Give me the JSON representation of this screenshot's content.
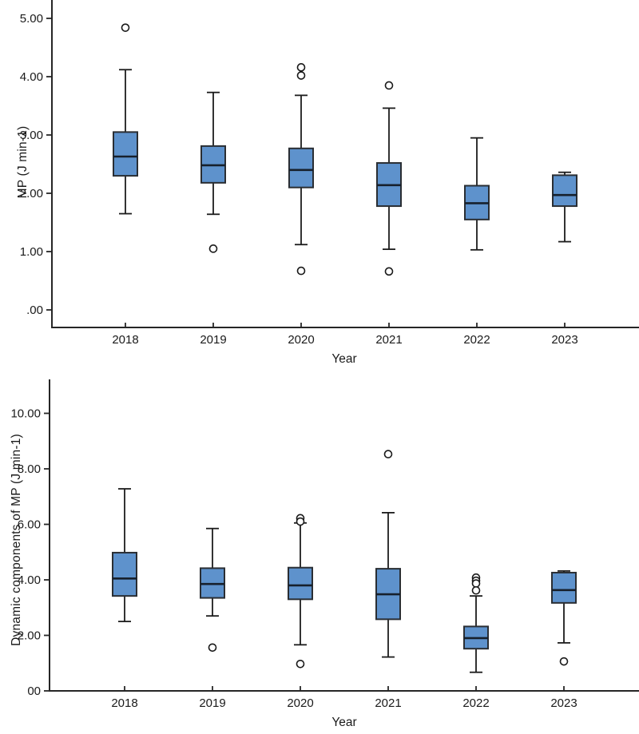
{
  "colors": {
    "background": "#FFFFFF",
    "box_fill": "#5E92CC",
    "box_stroke": "#2A2E33",
    "median_stroke": "#17202C",
    "whisker_stroke": "#1C1C1C",
    "axis_stroke": "#262626",
    "text": "#1A1A1A",
    "outlier_stroke": "#1A1A1A"
  },
  "chart_data": [
    {
      "type": "box",
      "title": "",
      "ylabel": "MP (J min-1)",
      "xlabel": "Year",
      "grid": false,
      "legend": "none",
      "categories": [
        "2018",
        "2019",
        "2020",
        "2021",
        "2022",
        "2023"
      ],
      "ylim": [
        -0.3,
        5.3
      ],
      "y_ticks": [
        {
          "value": 5,
          "label": "5.00"
        },
        {
          "value": 4,
          "label": "4.00"
        },
        {
          "value": 3,
          "label": "3.00"
        },
        {
          "value": 2,
          "label": "2.00"
        },
        {
          "value": 1,
          "label": "1.00"
        },
        {
          "value": 0,
          "label": ".00"
        }
      ],
      "boxes": [
        {
          "category": "2018",
          "whisker_low": 1.65,
          "q1": 2.3,
          "median": 2.63,
          "q3": 3.05,
          "whisker_high": 4.12,
          "outliers": [
            4.84
          ]
        },
        {
          "category": "2019",
          "whisker_low": 1.64,
          "q1": 2.18,
          "median": 2.48,
          "q3": 2.81,
          "whisker_high": 3.73,
          "outliers": [
            1.05
          ]
        },
        {
          "category": "2020",
          "whisker_low": 1.12,
          "q1": 2.1,
          "median": 2.4,
          "q3": 2.77,
          "whisker_high": 3.68,
          "outliers": [
            4.16,
            4.02,
            0.67
          ]
        },
        {
          "category": "2021",
          "whisker_low": 1.04,
          "q1": 1.78,
          "median": 2.14,
          "q3": 2.52,
          "whisker_high": 3.46,
          "outliers": [
            3.85,
            0.66
          ]
        },
        {
          "category": "2022",
          "whisker_low": 1.03,
          "q1": 1.55,
          "median": 1.83,
          "q3": 2.13,
          "whisker_high": 2.95,
          "outliers": []
        },
        {
          "category": "2023",
          "whisker_low": 1.17,
          "q1": 1.78,
          "median": 1.97,
          "q3": 2.31,
          "whisker_high": 2.36,
          "outliers": []
        }
      ]
    },
    {
      "type": "box",
      "title": "",
      "ylabel": "Dynamic components of MP (J min-1)",
      "xlabel": "Year",
      "grid": false,
      "legend": "none",
      "categories": [
        "2018",
        "2019",
        "2020",
        "2021",
        "2022",
        "2023"
      ],
      "ylim": [
        0,
        11.2
      ],
      "y_ticks": [
        {
          "value": 10,
          "label": "10.00"
        },
        {
          "value": 8,
          "label": "8.00"
        },
        {
          "value": 6,
          "label": "6.00"
        },
        {
          "value": 4,
          "label": "4.00"
        },
        {
          "value": 2,
          "label": "2.00"
        },
        {
          "value": 0,
          "label": "00"
        }
      ],
      "boxes": [
        {
          "category": "2018",
          "whisker_low": 2.5,
          "q1": 3.42,
          "median": 4.05,
          "q3": 4.98,
          "whisker_high": 7.28,
          "outliers": []
        },
        {
          "category": "2019",
          "whisker_low": 2.7,
          "q1": 3.35,
          "median": 3.85,
          "q3": 4.42,
          "whisker_high": 5.85,
          "outliers": [
            1.56
          ]
        },
        {
          "category": "2020",
          "whisker_low": 1.66,
          "q1": 3.3,
          "median": 3.8,
          "q3": 4.44,
          "whisker_high": 6.05,
          "outliers": [
            6.22,
            6.1,
            0.97
          ]
        },
        {
          "category": "2021",
          "whisker_low": 1.22,
          "q1": 2.58,
          "median": 3.48,
          "q3": 4.4,
          "whisker_high": 6.42,
          "outliers": [
            8.53
          ]
        },
        {
          "category": "2022",
          "whisker_low": 0.67,
          "q1": 1.52,
          "median": 1.9,
          "q3": 2.32,
          "whisker_high": 3.42,
          "outliers": [
            4.08,
            3.97,
            3.87,
            3.62
          ]
        },
        {
          "category": "2023",
          "whisker_low": 1.73,
          "q1": 3.17,
          "median": 3.63,
          "q3": 4.26,
          "whisker_high": 4.32,
          "outliers": [
            1.06
          ]
        }
      ]
    }
  ]
}
